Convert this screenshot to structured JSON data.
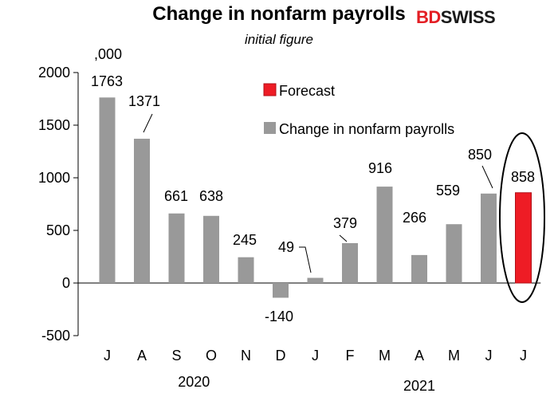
{
  "header": {
    "title": "Change in nonfarm payrolls",
    "subtitle": "initial figure",
    "logo_part1": "BD",
    "logo_part2": "SWISS",
    "unit": ",000"
  },
  "colors": {
    "bar": "#999999",
    "forecast": "#ee1c25",
    "forecast_edge": "#b01018",
    "axis": "#000000"
  },
  "chart_data": {
    "type": "bar",
    "title": "Change in nonfarm payrolls",
    "subtitle": "initial figure",
    "ylabel": ",000",
    "ylim": [
      -500,
      2000
    ],
    "yticks": [
      -500,
      0,
      500,
      1000,
      1500,
      2000
    ],
    "categories": [
      "J",
      "A",
      "S",
      "O",
      "N",
      "D",
      "J",
      "F",
      "M",
      "A",
      "M",
      "J",
      "J"
    ],
    "year_labels": [
      {
        "label": "2020",
        "start": 0,
        "end": 5
      },
      {
        "label": "2021",
        "start": 6,
        "end": 12
      }
    ],
    "series": [
      {
        "name": "Change in nonfarm payrolls",
        "values": [
          1763,
          1371,
          661,
          638,
          245,
          -140,
          49,
          379,
          916,
          266,
          559,
          850,
          null
        ]
      },
      {
        "name": "Forecast",
        "values": [
          null,
          null,
          null,
          null,
          null,
          null,
          null,
          null,
          null,
          null,
          null,
          null,
          858
        ]
      }
    ],
    "data_labels": [
      "1763",
      "1371",
      "661",
      "638",
      "245",
      "-140",
      "49",
      "379",
      "916",
      "266",
      "559",
      "850",
      "858"
    ],
    "legend": {
      "position": "top-right",
      "entries": [
        "Forecast",
        "Change in nonfarm payrolls"
      ]
    },
    "annotations": [
      "ellipse highlighting forecast bar"
    ]
  }
}
